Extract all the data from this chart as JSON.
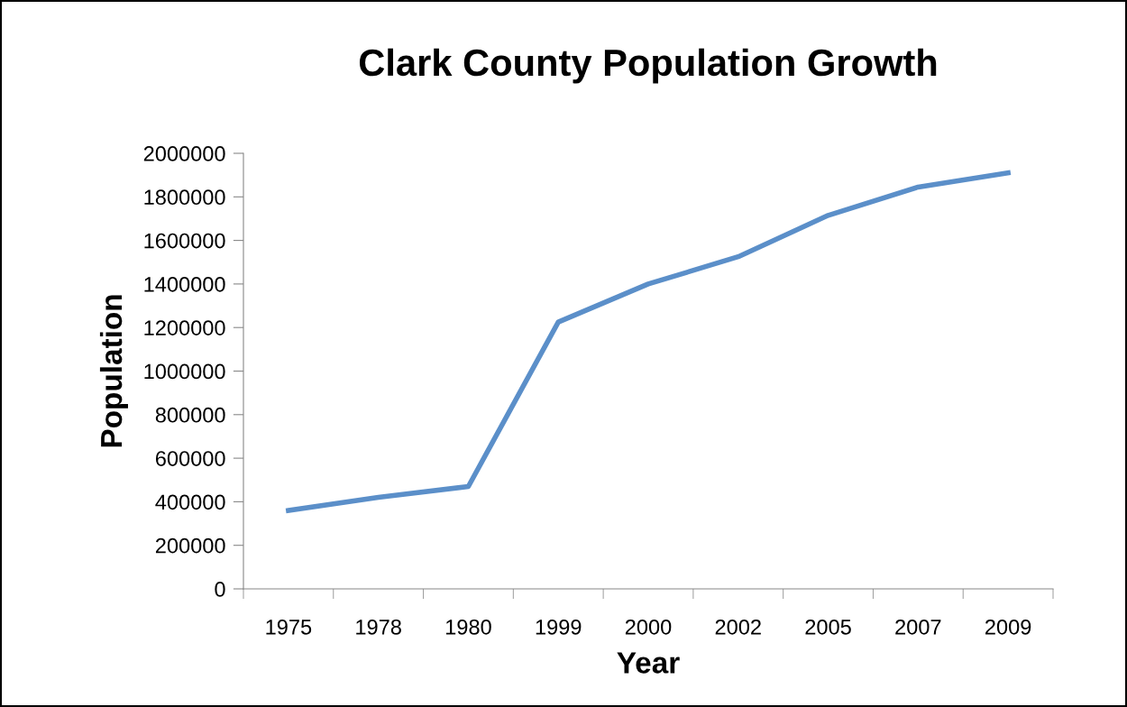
{
  "chart_data": {
    "type": "line",
    "title": "Clark County Population Growth",
    "xlabel": "Year",
    "ylabel": "Population",
    "categories": [
      "1975",
      "1978",
      "1980",
      "1999",
      "2000",
      "2002",
      "2005",
      "2007",
      "2009"
    ],
    "series": [
      {
        "color": "#5b8fc9",
        "values": [
          360000,
          420000,
          470000,
          1225000,
          1400000,
          1525000,
          1715000,
          1845000,
          1910000
        ]
      }
    ],
    "ylim": [
      0,
      2000000
    ],
    "yticks": [
      0,
      200000,
      400000,
      600000,
      800000,
      1000000,
      1200000,
      1400000,
      1600000,
      1800000,
      2000000
    ],
    "grid": false,
    "legend": false,
    "marker": "none",
    "line_style": "solid"
  }
}
